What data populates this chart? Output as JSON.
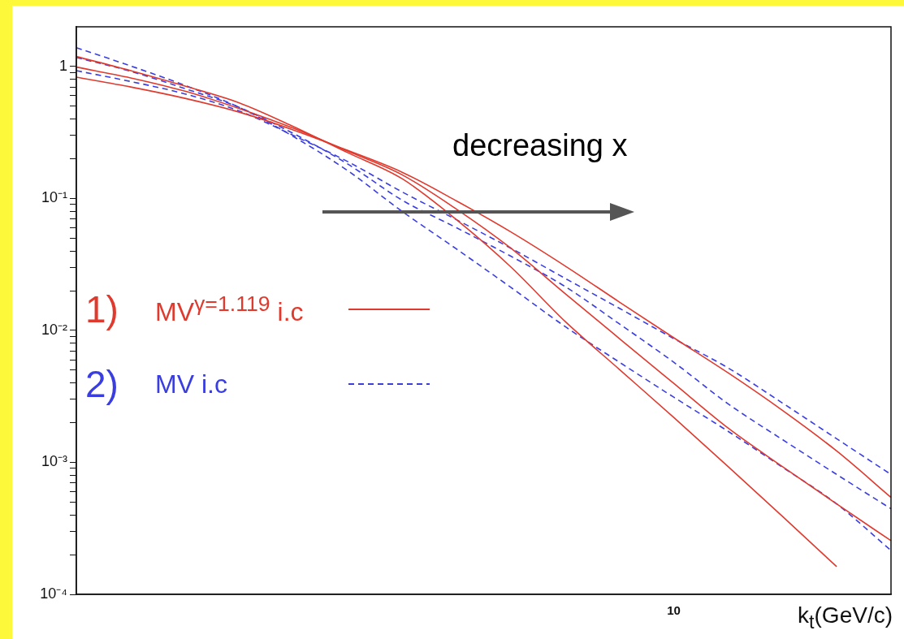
{
  "chart_data": {
    "type": "line",
    "xlabel": "k$_{t}$(GeV/c)",
    "categories": [
      null,
      null,
      null,
      null,
      null,
      null,
      null,
      null,
      null,
      null,
      null,
      "10",
      null,
      null,
      null,
      null
    ],
    "series": [
      {
        "name": "MV$^{γ=1.119}$ i.c",
        "color": "#e03a2e",
        "line_style": "solid",
        "values": [
          1.19,
          0.93,
          0.71,
          0.53,
          0.35,
          0.222,
          0.141,
          0.069,
          0.0303,
          0.0117,
          0.00506,
          0.00219,
          0.00093,
          0.00039,
          0.000162,
          null
        ]
      },
      {
        "color": "#e03a2e",
        "line_style": "solid",
        "values": [
          0.99,
          0.82,
          0.65,
          0.48,
          0.34,
          0.228,
          0.151,
          0.083,
          0.042,
          0.019,
          0.00867,
          0.00397,
          0.00182,
          0.00093,
          0.000484,
          0.000255
        ]
      },
      {
        "color": "#e03a2e",
        "line_style": "solid",
        "values": [
          0.83,
          0.7,
          0.574,
          0.451,
          0.33,
          0.231,
          0.158,
          0.0958,
          0.0558,
          0.0308,
          0.0164,
          0.0088,
          0.00477,
          0.00248,
          0.00122,
          0.000543
        ]
      },
      {
        "name": "MV i.c",
        "color": "#3a3ee0",
        "line_style": "dashed",
        "values": [
          0.93,
          0.77,
          0.62,
          0.46,
          0.3,
          0.19,
          0.112,
          0.069,
          0.042,
          0.0248,
          0.0147,
          0.00867,
          0.0052,
          0.00282,
          0.00151,
          0.00081
        ]
      },
      {
        "color": "#3a3ee0",
        "line_style": "dashed",
        "values": [
          1.17,
          0.92,
          0.68,
          0.49,
          0.31,
          0.182,
          0.097,
          0.06,
          0.0365,
          0.0215,
          0.0112,
          0.00574,
          0.00278,
          0.00149,
          0.00081,
          0.000445
        ]
      },
      {
        "color": "#3a3ee0",
        "line_style": "dashed",
        "values": [
          1.39,
          1.01,
          0.72,
          0.49,
          0.294,
          0.162,
          0.0797,
          0.0414,
          0.0212,
          0.0107,
          0.00574,
          0.00312,
          0.00172,
          0.00092,
          0.000484,
          0.000215
        ]
      }
    ],
    "log": "y",
    "ylim": [
      0.0001,
      2
    ],
    "yticks": [
      {
        "value": 0.0001,
        "label": "10⁻⁴"
      },
      {
        "value": 0.0002,
        "label": null
      },
      {
        "value": 0.0003,
        "label": null
      },
      {
        "value": 0.0004,
        "label": null
      },
      {
        "value": 0.0005,
        "label": null
      },
      {
        "value": 0.0006,
        "label": null
      },
      {
        "value": 0.0007,
        "label": null
      },
      {
        "value": 0.0008,
        "label": null
      },
      {
        "value": 0.0009,
        "label": null
      },
      {
        "value": 0.001,
        "label": "10⁻³"
      },
      {
        "value": 0.002,
        "label": null
      },
      {
        "value": 0.003,
        "label": null
      },
      {
        "value": 0.004,
        "label": null
      },
      {
        "value": 0.005,
        "label": null
      },
      {
        "value": 0.006,
        "label": null
      },
      {
        "value": 0.007,
        "label": null
      },
      {
        "value": 0.008,
        "label": null
      },
      {
        "value": 0.009,
        "label": null
      },
      {
        "value": 0.01,
        "label": "10⁻²"
      },
      {
        "value": 0.02,
        "label": null
      },
      {
        "value": 0.03,
        "label": null
      },
      {
        "value": 0.04,
        "label": null
      },
      {
        "value": 0.05,
        "label": null
      },
      {
        "value": 0.06,
        "label": null
      },
      {
        "value": 0.07,
        "label": null
      },
      {
        "value": 0.08,
        "label": null
      },
      {
        "value": 0.09,
        "label": null
      },
      {
        "value": 0.1,
        "label": "10⁻¹"
      },
      {
        "value": 0.2,
        "label": null
      },
      {
        "value": 0.3,
        "label": null
      },
      {
        "value": 0.4,
        "label": null
      },
      {
        "value": 0.5,
        "label": null
      },
      {
        "value": 0.6,
        "label": null
      },
      {
        "value": 0.7,
        "label": null
      },
      {
        "value": 0.8,
        "label": null
      },
      {
        "value": 0.9,
        "label": null
      },
      {
        "value": 1,
        "label": "1"
      }
    ],
    "grid": false,
    "marker": "none",
    "legend": "left",
    "annotations": [
      "decreasing x",
      "1)",
      "2)"
    ]
  }
}
